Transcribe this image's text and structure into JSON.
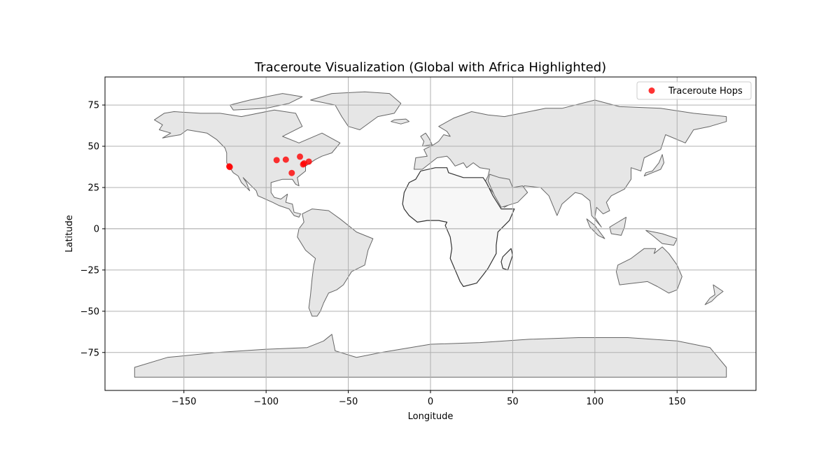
{
  "chart_data": {
    "type": "scatter",
    "title": "Traceroute Visualization (Global with Africa Highlighted)",
    "xlabel": "Longitude",
    "ylabel": "Latitude",
    "xlim": [
      -198,
      198
    ],
    "ylim": [
      -98,
      92
    ],
    "xticks": [
      -150,
      -100,
      -50,
      0,
      50,
      100,
      150
    ],
    "yticks": [
      -75,
      -50,
      -25,
      0,
      25,
      50,
      75
    ],
    "xtick_labels": [
      "−150",
      "−100",
      "−50",
      "0",
      "50",
      "100",
      "150"
    ],
    "ytick_labels": [
      "−75",
      "−50",
      "−25",
      "0",
      "25",
      "50",
      "75"
    ],
    "grid": true,
    "legend_position": "top-right",
    "series": [
      {
        "name": "Traceroute Hops",
        "color": "#ff0000",
        "points": [
          {
            "x": -122.4,
            "y": 37.8
          },
          {
            "x": -122.1,
            "y": 37.4
          },
          {
            "x": -93.6,
            "y": 41.6
          },
          {
            "x": -88.0,
            "y": 41.9
          },
          {
            "x": -79.4,
            "y": 43.7
          },
          {
            "x": -84.4,
            "y": 33.8
          },
          {
            "x": -77.5,
            "y": 39.0
          },
          {
            "x": -76.9,
            "y": 39.6
          },
          {
            "x": -74.0,
            "y": 40.7
          }
        ]
      }
    ],
    "map": {
      "land_color": "#e6e6e6",
      "land_edge": "#666666",
      "highlight_region": "Africa",
      "highlight_color": "#f7f7f7",
      "highlight_edge": "#333333"
    }
  }
}
